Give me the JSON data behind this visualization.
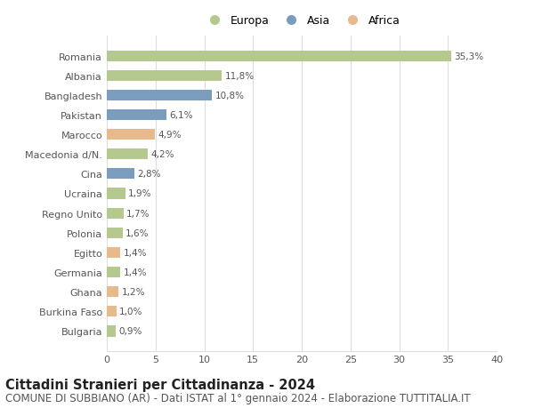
{
  "categories": [
    "Romania",
    "Albania",
    "Bangladesh",
    "Pakistan",
    "Marocco",
    "Macedonia d/N.",
    "Cina",
    "Ucraina",
    "Regno Unito",
    "Polonia",
    "Egitto",
    "Germania",
    "Ghana",
    "Burkina Faso",
    "Bulgaria"
  ],
  "values": [
    35.3,
    11.8,
    10.8,
    6.1,
    4.9,
    4.2,
    2.8,
    1.9,
    1.7,
    1.6,
    1.4,
    1.4,
    1.2,
    1.0,
    0.9
  ],
  "labels": [
    "35,3%",
    "11,8%",
    "10,8%",
    "6,1%",
    "4,9%",
    "4,2%",
    "2,8%",
    "1,9%",
    "1,7%",
    "1,6%",
    "1,4%",
    "1,4%",
    "1,2%",
    "1,0%",
    "0,9%"
  ],
  "continent": [
    "Europa",
    "Europa",
    "Asia",
    "Asia",
    "Africa",
    "Europa",
    "Asia",
    "Europa",
    "Europa",
    "Europa",
    "Africa",
    "Europa",
    "Africa",
    "Africa",
    "Europa"
  ],
  "colors": {
    "Europa": "#b5c98e",
    "Asia": "#7b9dbd",
    "Africa": "#e8b98a"
  },
  "xlim": [
    0,
    40
  ],
  "xticks": [
    0,
    5,
    10,
    15,
    20,
    25,
    30,
    35,
    40
  ],
  "title": "Cittadini Stranieri per Cittadinanza - 2024",
  "subtitle": "COMUNE DI SUBBIANO (AR) - Dati ISTAT al 1° gennaio 2024 - Elaborazione TUTTITALIA.IT",
  "title_fontsize": 10.5,
  "subtitle_fontsize": 8.5,
  "bg_color": "#ffffff",
  "grid_color": "#dddddd",
  "bar_height": 0.55,
  "label_fontsize": 7.5,
  "ytick_fontsize": 8,
  "xtick_fontsize": 8
}
